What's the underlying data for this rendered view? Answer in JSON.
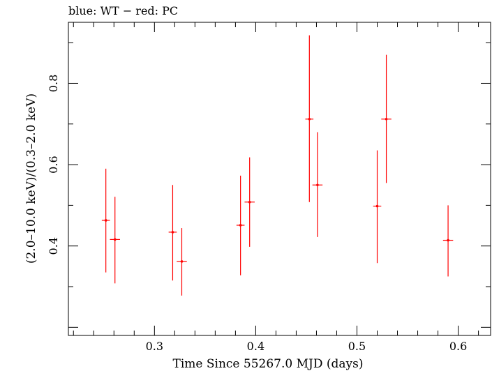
{
  "header": {
    "text": "blue: WT − red: PC"
  },
  "chart_data": {
    "type": "scatter",
    "title": "blue: WT − red: PC",
    "xlabel": "Time Since 55267.0 MJD (days)",
    "ylabel": "(2.0–10.0 keV)/(0.3–2.0 keV)",
    "xlim": [
      0.215,
      0.632
    ],
    "ylim": [
      0.18,
      0.95
    ],
    "xticks": [
      0.3,
      0.4,
      0.5,
      0.6
    ],
    "xtick_labels": [
      "0.3",
      "0.4",
      "0.5",
      "0.6"
    ],
    "yticks": [
      0.4,
      0.6,
      0.8
    ],
    "ytick_labels": [
      "0.4",
      "0.6",
      "0.8"
    ],
    "grid": false,
    "legend": "none",
    "series": [
      {
        "color": "#ff0000",
        "points": [
          {
            "x": 0.252,
            "xerr": 0.004,
            "y": 0.463,
            "ylo": 0.335,
            "yhi": 0.59
          },
          {
            "x": 0.261,
            "xerr": 0.005,
            "y": 0.416,
            "ylo": 0.308,
            "yhi": 0.521
          },
          {
            "x": 0.318,
            "xerr": 0.004,
            "y": 0.434,
            "ylo": 0.315,
            "yhi": 0.55
          },
          {
            "x": 0.327,
            "xerr": 0.005,
            "y": 0.362,
            "ylo": 0.278,
            "yhi": 0.444
          },
          {
            "x": 0.385,
            "xerr": 0.004,
            "y": 0.451,
            "ylo": 0.328,
            "yhi": 0.573
          },
          {
            "x": 0.394,
            "xerr": 0.005,
            "y": 0.508,
            "ylo": 0.398,
            "yhi": 0.618
          },
          {
            "x": 0.453,
            "xerr": 0.004,
            "y": 0.712,
            "ylo": 0.508,
            "yhi": 0.918
          },
          {
            "x": 0.461,
            "xerr": 0.005,
            "y": 0.55,
            "ylo": 0.422,
            "yhi": 0.68
          },
          {
            "x": 0.52,
            "xerr": 0.004,
            "y": 0.498,
            "ylo": 0.358,
            "yhi": 0.635
          },
          {
            "x": 0.529,
            "xerr": 0.005,
            "y": 0.712,
            "ylo": 0.555,
            "yhi": 0.87
          },
          {
            "x": 0.59,
            "xerr": 0.005,
            "y": 0.414,
            "ylo": 0.325,
            "yhi": 0.5
          }
        ]
      }
    ]
  }
}
